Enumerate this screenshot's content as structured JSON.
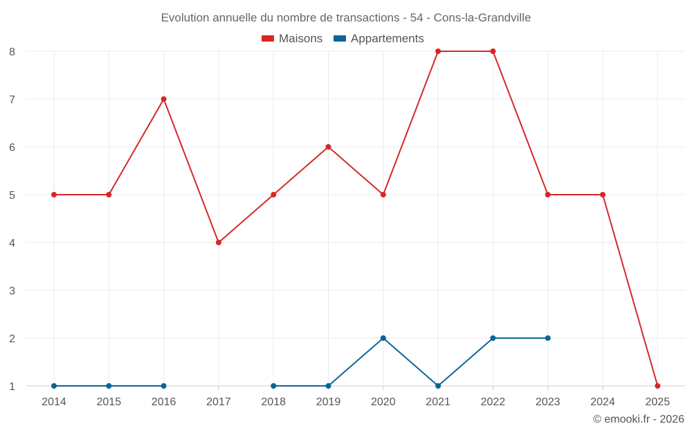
{
  "chart_data": {
    "type": "line",
    "title": "Evolution annuelle du nombre de transactions - 54 - Cons-la-Grandville",
    "categories": [
      "2014",
      "2015",
      "2016",
      "2017",
      "2018",
      "2019",
      "2020",
      "2021",
      "2022",
      "2023",
      "2024",
      "2025"
    ],
    "series": [
      {
        "name": "Maisons",
        "color": "#d62728",
        "values": [
          5,
          5,
          7,
          4,
          5,
          6,
          5,
          8,
          8,
          5,
          5,
          1
        ]
      },
      {
        "name": "Appartements",
        "color": "#0b6596",
        "values": [
          1,
          1,
          1,
          null,
          1,
          1,
          2,
          1,
          2,
          2,
          null,
          null
        ]
      }
    ],
    "ylim": [
      1,
      8
    ],
    "yticks": [
      1,
      2,
      3,
      4,
      5,
      6,
      7,
      8
    ],
    "xlabel": "",
    "ylabel": "",
    "grid": true,
    "legend_position": "top-center"
  },
  "credit": "© emooki.fr - 2026"
}
